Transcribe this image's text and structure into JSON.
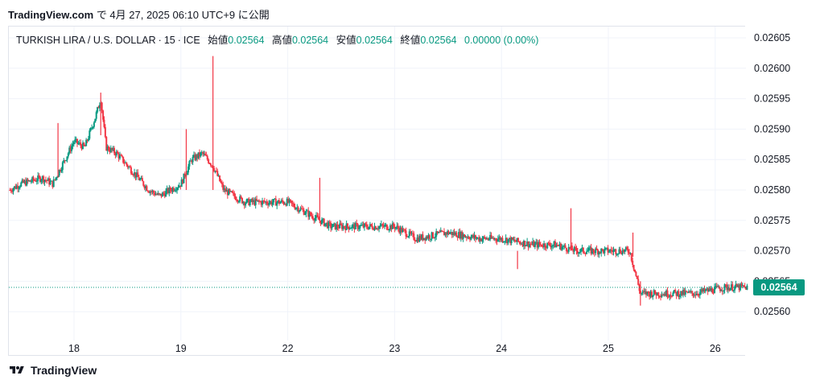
{
  "header": {
    "site": "TradingView.com",
    "rest": " で 4月 27, 2025 06:10 UTC+9 に公開"
  },
  "legend": {
    "symbol": "TURKISH LIRA / U.S. DOLLAR",
    "interval": "15",
    "exchange": "ICE",
    "open_label": "始値",
    "open": "0.02564",
    "high_label": "高値",
    "high": "0.02564",
    "low_label": "安値",
    "low": "0.02564",
    "close_label": "終値",
    "close": "0.02564",
    "change": "0.00000 (0.00%)"
  },
  "footer": {
    "brand": "TradingView"
  },
  "colors": {
    "up": "#089981",
    "down": "#f23645",
    "grid": "#f0f3fa",
    "text": "#131722"
  },
  "chart_data": {
    "type": "candlestick",
    "ylim": [
      0.025575,
      0.026075
    ],
    "y_ticks": [
      "0.02560",
      "0.02565",
      "0.02570",
      "0.02575",
      "0.02580",
      "0.02585",
      "0.02590",
      "0.02595",
      "0.02600",
      "0.02605"
    ],
    "y_tick_values": [
      0.0256,
      0.02565,
      0.0257,
      0.02575,
      0.0258,
      0.02585,
      0.0259,
      0.02595,
      0.026,
      0.02605
    ],
    "x_ticks": [
      "18",
      "19",
      "22",
      "23",
      "24",
      "25",
      "26"
    ],
    "x_tick_positions": [
      0,
      1,
      2,
      3,
      4,
      5,
      6
    ],
    "x_range": [
      -0.6,
      6.3
    ],
    "last_price": "0.02564",
    "last_price_value": 0.02564,
    "close_path": [
      [
        -0.6,
        0.0258
      ],
      [
        -0.5,
        0.02581
      ],
      [
        -0.3,
        0.02582
      ],
      [
        -0.2,
        0.02581
      ],
      [
        0.0,
        0.02588
      ],
      [
        0.1,
        0.02587
      ],
      [
        0.2,
        0.02592
      ],
      [
        0.25,
        0.02595
      ],
      [
        0.3,
        0.02587
      ],
      [
        0.4,
        0.02586
      ],
      [
        0.55,
        0.02583
      ],
      [
        0.7,
        0.0258
      ],
      [
        0.8,
        0.02579
      ],
      [
        1.0,
        0.02581
      ],
      [
        1.1,
        0.02585
      ],
      [
        1.2,
        0.02586
      ],
      [
        1.3,
        0.02584
      ],
      [
        1.4,
        0.0258
      ],
      [
        1.5,
        0.02579
      ],
      [
        1.6,
        0.02578
      ],
      [
        1.8,
        0.02578
      ],
      [
        2.0,
        0.02578
      ],
      [
        2.2,
        0.02576
      ],
      [
        2.4,
        0.02574
      ],
      [
        2.6,
        0.02574
      ],
      [
        3.0,
        0.02574
      ],
      [
        3.2,
        0.02572
      ],
      [
        3.5,
        0.02573
      ],
      [
        3.8,
        0.02572
      ],
      [
        4.0,
        0.02572
      ],
      [
        4.3,
        0.02571
      ],
      [
        4.5,
        0.02571
      ],
      [
        4.7,
        0.0257
      ],
      [
        5.0,
        0.0257
      ],
      [
        5.2,
        0.0257
      ],
      [
        5.3,
        0.02563
      ],
      [
        5.5,
        0.02563
      ],
      [
        5.8,
        0.02563
      ],
      [
        6.1,
        0.02564
      ],
      [
        6.25,
        0.02564
      ]
    ],
    "spikes": [
      {
        "x": 1.3,
        "high": 0.02602,
        "low": 0.0258
      },
      {
        "x": 1.05,
        "high": 0.0259,
        "low": 0.0258
      },
      {
        "x": 0.25,
        "high": 0.02596,
        "low": 0.02589
      },
      {
        "x": -0.15,
        "high": 0.02591,
        "low": 0.02582
      },
      {
        "x": 2.3,
        "high": 0.02582,
        "low": 0.02575
      },
      {
        "x": 4.65,
        "high": 0.02577,
        "low": 0.0257
      },
      {
        "x": 4.15,
        "high": 0.0257,
        "low": 0.02567
      },
      {
        "x": 5.3,
        "high": 0.02565,
        "low": 0.02561
      },
      {
        "x": 5.23,
        "high": 0.02573,
        "low": 0.02569
      }
    ]
  }
}
